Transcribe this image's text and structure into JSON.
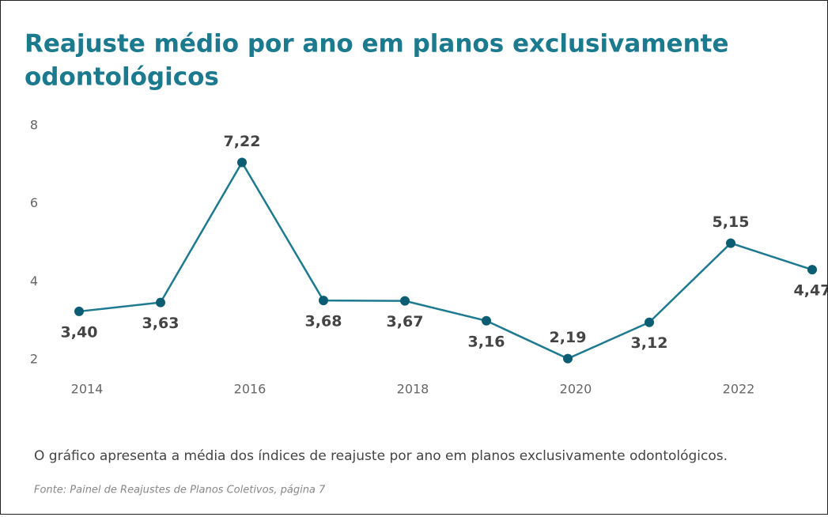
{
  "chart_data": {
    "type": "line",
    "title": [
      "Reajuste médio por ano em planos exclusivamente",
      "odontológicos"
    ],
    "x": [
      2014,
      2015,
      2016,
      2017,
      2018,
      2019,
      2020,
      2021,
      2022,
      2023
    ],
    "series": [
      {
        "color": "#1e7a90",
        "values": [
          3.4,
          3.63,
          7.22,
          3.68,
          3.67,
          3.16,
          2.19,
          3.12,
          5.15,
          4.47
        ],
        "value_labels": [
          "3,40",
          "3,63",
          "7,22",
          "3,68",
          "3,67",
          "3,16",
          "2,19",
          "3,12",
          "5,15",
          "4,47"
        ]
      }
    ],
    "xlim": [
      2014,
      2023
    ],
    "xticks": [
      2014,
      2016,
      2018,
      2020,
      2022
    ],
    "ylim": [
      2,
      8
    ],
    "yticks": [
      2,
      4,
      6,
      8
    ],
    "grid": false,
    "description": "O gráfico apresenta a média dos índices de reajuste por ano em planos exclusivamente odontológicos.",
    "source": "Fonte: Painel de Reajustes de Planos Coletivos, página 7"
  }
}
